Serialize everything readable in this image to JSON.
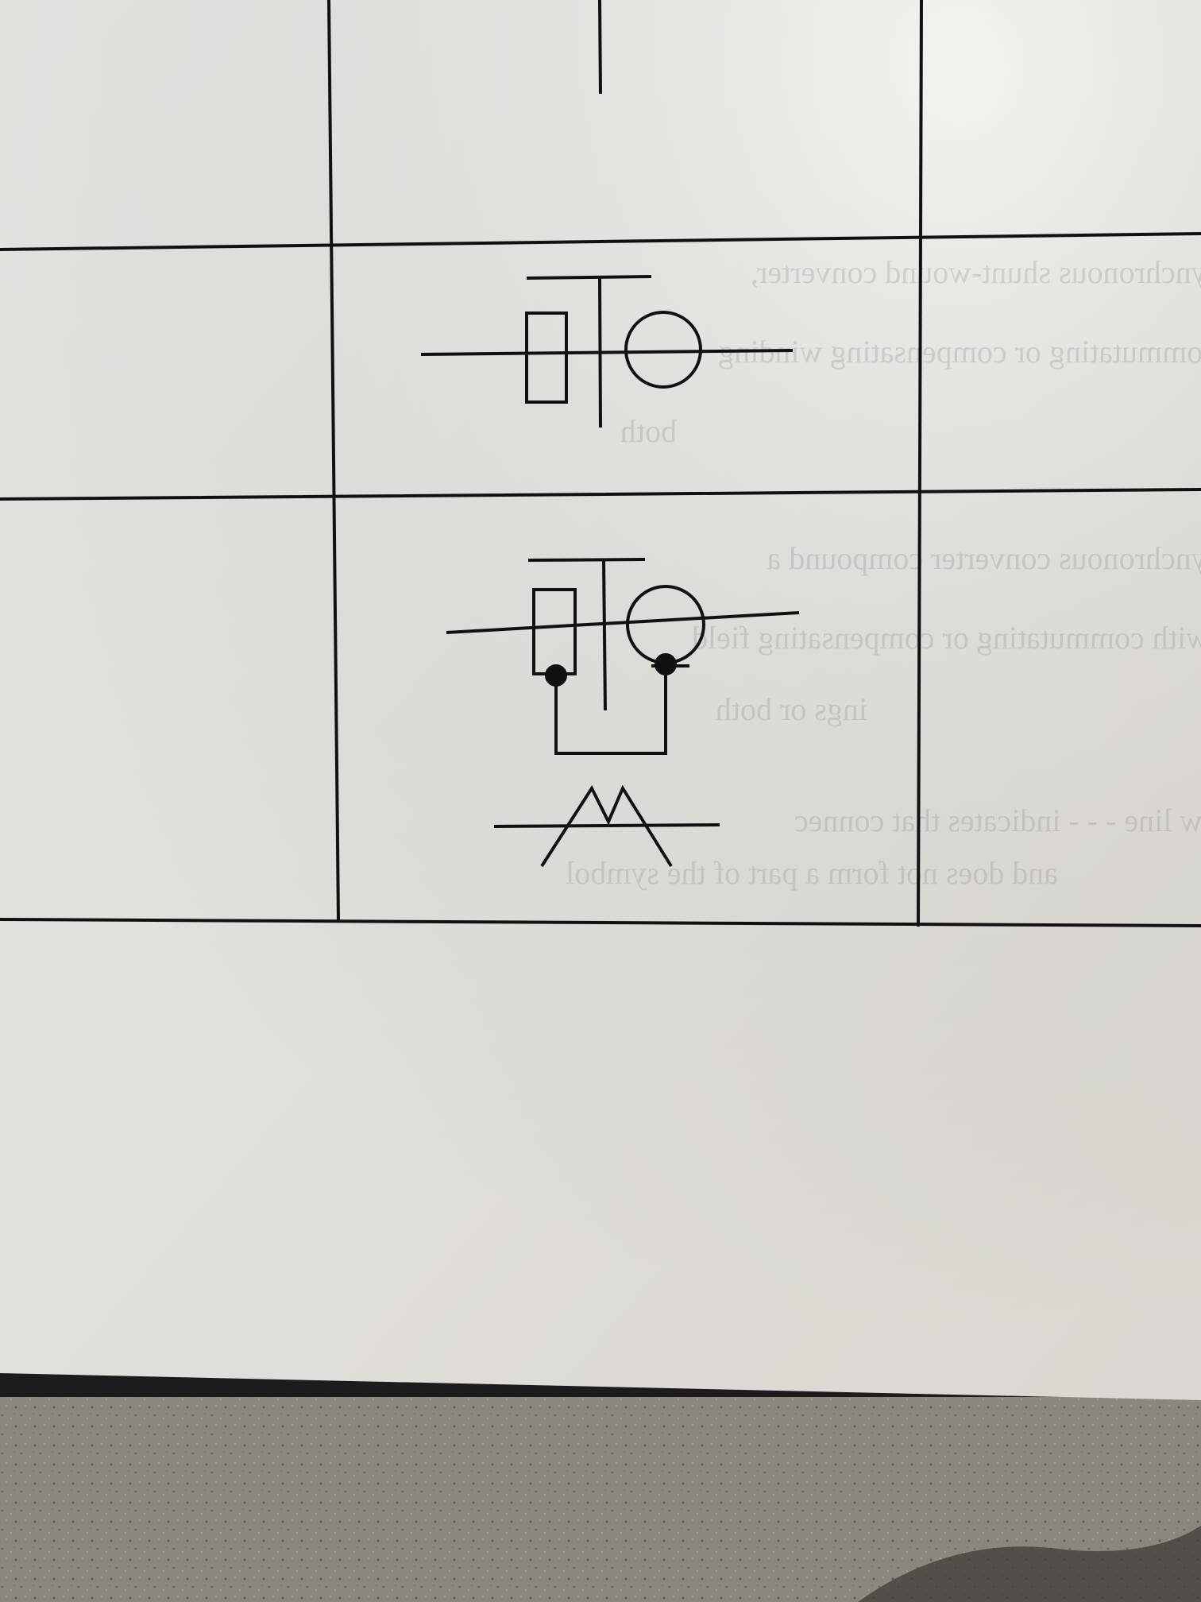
{
  "photo": {
    "paper_color": "#f2f0ec",
    "ink_color": "#111111",
    "surface_color": "#8a8781"
  },
  "table": {
    "rows": [
      {
        "symbol": "symbol-partial-vertical-line"
      },
      {
        "symbol": "symbol-rotary-converter"
      },
      {
        "symbol": "symbol-rotary-converter-with-interconnection-and-winding"
      }
    ]
  },
  "bleed_through_text": [
    "Synchronous shunt-wound converter,",
    "commutating or compensating winding",
    "both",
    "Synchronous converter compound a",
    "with commutating or compensating field",
    "ings or both",
    "ew line - - - indicates that connec",
    "and does not form a part of the symbol"
  ]
}
